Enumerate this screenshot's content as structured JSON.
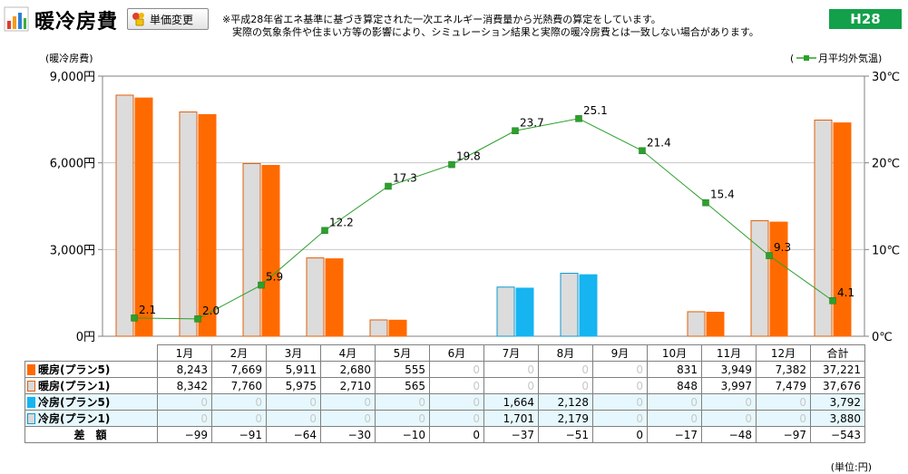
{
  "header": {
    "title": "暖冷房費",
    "price_button_label": "単価変更",
    "note_line1": "※平成28年省エネ基準に基づき算定された一次エネルギー消費量から光熱費の算定をしています。",
    "note_line2": "実際の気象条件や住まい方等の影響により、シミュレーション結果と実際の暖冷房費とは一致しない場合があります。",
    "year_badge": "H28"
  },
  "colors": {
    "heating_plan5": "#ff6a00",
    "heating_plan1": "#d9d9d9",
    "cooling_plan5": "#16b4f0",
    "cooling_plan1": "#d9d9d9",
    "temperature_line": "#2ca02c",
    "badge": "#13a04a"
  },
  "chart_data": {
    "type": "bar",
    "left_axis_title": "(暖冷房費)",
    "right_legend_prefix": "(",
    "right_legend_label": "月平均外気温)",
    "yticks_left": [
      "0円",
      "3,000円",
      "6,000円",
      "9,000円"
    ],
    "yticks_right": [
      "0℃",
      "10℃",
      "20℃",
      "30℃"
    ],
    "ylim_left": [
      0,
      9000
    ],
    "ylim_right": [
      0,
      30
    ],
    "categories": [
      "1月",
      "2月",
      "3月",
      "4月",
      "5月",
      "6月",
      "7月",
      "8月",
      "9月",
      "10月",
      "11月",
      "12月"
    ],
    "series": [
      {
        "name": "暖房(プラン5)",
        "values": [
          8243,
          7669,
          5911,
          2680,
          555,
          0,
          0,
          0,
          0,
          831,
          3949,
          7382
        ]
      },
      {
        "name": "暖房(プラン1)",
        "values": [
          8342,
          7760,
          5975,
          2710,
          565,
          0,
          0,
          0,
          0,
          848,
          3997,
          7479
        ]
      },
      {
        "name": "冷房(プラン5)",
        "values": [
          0,
          0,
          0,
          0,
          0,
          0,
          1664,
          2128,
          0,
          0,
          0,
          0
        ]
      },
      {
        "name": "冷房(プラン1)",
        "values": [
          0,
          0,
          0,
          0,
          0,
          0,
          1701,
          2179,
          0,
          0,
          0,
          0
        ]
      }
    ],
    "temperature": {
      "name": "月平均外気温",
      "values": [
        2.1,
        2.0,
        5.9,
        12.2,
        17.3,
        19.8,
        23.7,
        25.1,
        21.4,
        15.4,
        9.3,
        4.1
      ],
      "labels": [
        "2.1",
        "2.0",
        "5.9",
        "12.2",
        "17.3",
        "19.8",
        "23.7",
        "25.1",
        "21.4",
        "15.4",
        "9.3",
        "4.1"
      ]
    }
  },
  "table": {
    "columns": [
      "1月",
      "2月",
      "3月",
      "4月",
      "5月",
      "6月",
      "7月",
      "8月",
      "9月",
      "10月",
      "11月",
      "12月",
      "合計"
    ],
    "rows": [
      {
        "label": "暖房(プラン5)",
        "swatch": "heating_plan5",
        "cool": false,
        "cells": [
          "8,243",
          "7,669",
          "5,911",
          "2,680",
          "555",
          "0",
          "0",
          "0",
          "0",
          "831",
          "3,949",
          "7,382",
          "37,221"
        ]
      },
      {
        "label": "暖房(プラン1)",
        "swatch": "heating_plan1",
        "cool": false,
        "cells": [
          "8,342",
          "7,760",
          "5,975",
          "2,710",
          "565",
          "0",
          "0",
          "0",
          "0",
          "848",
          "3,997",
          "7,479",
          "37,676"
        ]
      },
      {
        "label": "冷房(プラン5)",
        "swatch": "cooling_plan5",
        "cool": true,
        "cells": [
          "0",
          "0",
          "0",
          "0",
          "0",
          "0",
          "1,664",
          "2,128",
          "0",
          "0",
          "0",
          "0",
          "3,792"
        ]
      },
      {
        "label": "冷房(プラン1)",
        "swatch": "cooling_plan1",
        "cool": true,
        "cells": [
          "0",
          "0",
          "0",
          "0",
          "0",
          "0",
          "1,701",
          "2,179",
          "0",
          "0",
          "0",
          "0",
          "3,880"
        ]
      },
      {
        "label": "差　額",
        "swatch": null,
        "cool": false,
        "cells": [
          "−99",
          "−91",
          "−64",
          "−30",
          "−10",
          "0",
          "−37",
          "−51",
          "0",
          "−17",
          "−48",
          "−97",
          "−543"
        ]
      }
    ],
    "unit_label": "(単位:円)"
  }
}
